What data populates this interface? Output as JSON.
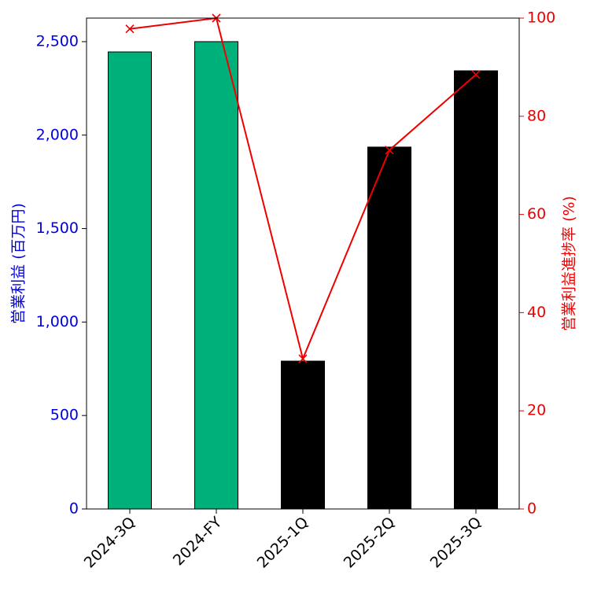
{
  "chart_data": {
    "type": "bar",
    "y_label": "営業利益 (百万円)",
    "y2_label": "営業利益進捗率 (%)",
    "categories": [
      "2024-3Q",
      "2024-FY",
      "2025-1Q",
      "2025-2Q",
      "2025-3Q"
    ],
    "ylim": [
      0,
      2626
    ],
    "yticks": [
      0,
      500,
      {
        "value": 1000,
        "label": "1,000"
      },
      {
        "value": 1500,
        "label": "1,500"
      },
      {
        "value": 2000,
        "label": "2,000"
      },
      {
        "value": 2500,
        "label": "2,500"
      }
    ],
    "y2lim": [
      0,
      100
    ],
    "y2ticks": [
      0,
      20,
      40,
      60,
      80,
      100
    ],
    "y_color": "#0000dd",
    "y2_color": "#ee0000",
    "series": [
      {
        "type": "bar",
        "values": [
          2445,
          2500,
          791,
          1936,
          2344
        ],
        "colors": [
          "#00b07a",
          "#00b07a",
          "#000000",
          "#000000",
          "#000000"
        ]
      },
      {
        "type": "line",
        "axis": "y2",
        "color": "#ee0000",
        "values": [
          97.8,
          100,
          30.6,
          73.1,
          88.5
        ]
      }
    ]
  }
}
